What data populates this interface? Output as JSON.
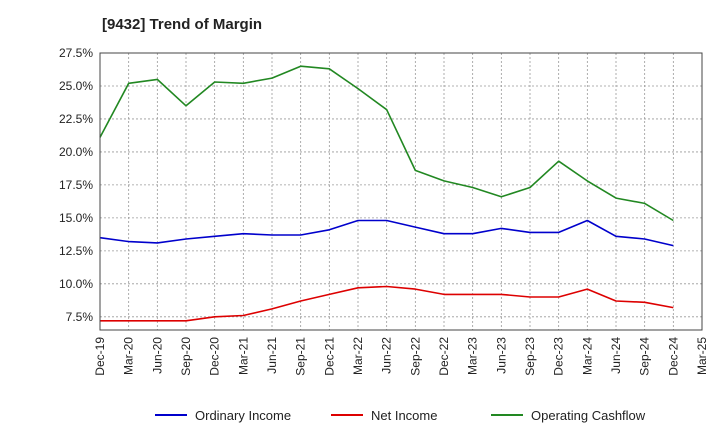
{
  "chart_data": {
    "type": "line",
    "title": "[9432]  Trend of Margin",
    "xlabel": "",
    "ylabel": "",
    "x": [
      "Dec-19",
      "Mar-20",
      "Jun-20",
      "Sep-20",
      "Dec-20",
      "Mar-21",
      "Jun-21",
      "Sep-21",
      "Dec-21",
      "Mar-22",
      "Jun-22",
      "Sep-22",
      "Dec-22",
      "Mar-23",
      "Jun-23",
      "Sep-23",
      "Dec-23",
      "Mar-24",
      "Jun-24",
      "Sep-24",
      "Dec-24"
    ],
    "x_tick_labels": [
      "Dec-19",
      "Mar-20",
      "Jun-20",
      "Sep-20",
      "Dec-20",
      "Mar-21",
      "Jun-21",
      "Sep-21",
      "Dec-21",
      "Mar-22",
      "Jun-22",
      "Sep-22",
      "Dec-22",
      "Mar-23",
      "Jun-23",
      "Sep-23",
      "Dec-23",
      "Mar-24",
      "Jun-24",
      "Sep-24",
      "Dec-24",
      "Mar-25"
    ],
    "y_ticks": [
      7.5,
      10.0,
      12.5,
      15.0,
      17.5,
      20.0,
      22.5,
      25.0,
      27.5
    ],
    "y_tick_labels": [
      "7.5%",
      "10.0%",
      "12.5%",
      "15.0%",
      "17.5%",
      "20.0%",
      "22.5%",
      "25.0%",
      "27.5%"
    ],
    "ylim": [
      6.5,
      27.5
    ],
    "grid": true,
    "legend_position": "bottom",
    "series": [
      {
        "name": "Ordinary Income",
        "color": "#0000cc",
        "values": [
          13.5,
          13.2,
          13.1,
          13.4,
          13.6,
          13.8,
          13.7,
          13.7,
          14.1,
          14.8,
          14.8,
          14.3,
          13.8,
          13.8,
          14.2,
          13.9,
          13.9,
          14.8,
          13.6,
          13.4,
          12.9
        ]
      },
      {
        "name": "Net Income",
        "color": "#dd0000",
        "values": [
          7.2,
          7.2,
          7.2,
          7.2,
          7.5,
          7.6,
          8.1,
          8.7,
          9.2,
          9.7,
          9.8,
          9.6,
          9.2,
          9.2,
          9.2,
          9.0,
          9.0,
          9.6,
          8.7,
          8.6,
          8.2
        ]
      },
      {
        "name": "Operating Cashflow",
        "color": "#228822",
        "values": [
          21.1,
          25.2,
          25.5,
          23.5,
          25.3,
          25.2,
          25.6,
          26.5,
          26.3,
          24.8,
          23.2,
          18.6,
          17.8,
          17.3,
          16.6,
          17.3,
          19.3,
          17.8,
          16.5,
          16.1,
          14.8
        ]
      }
    ]
  }
}
